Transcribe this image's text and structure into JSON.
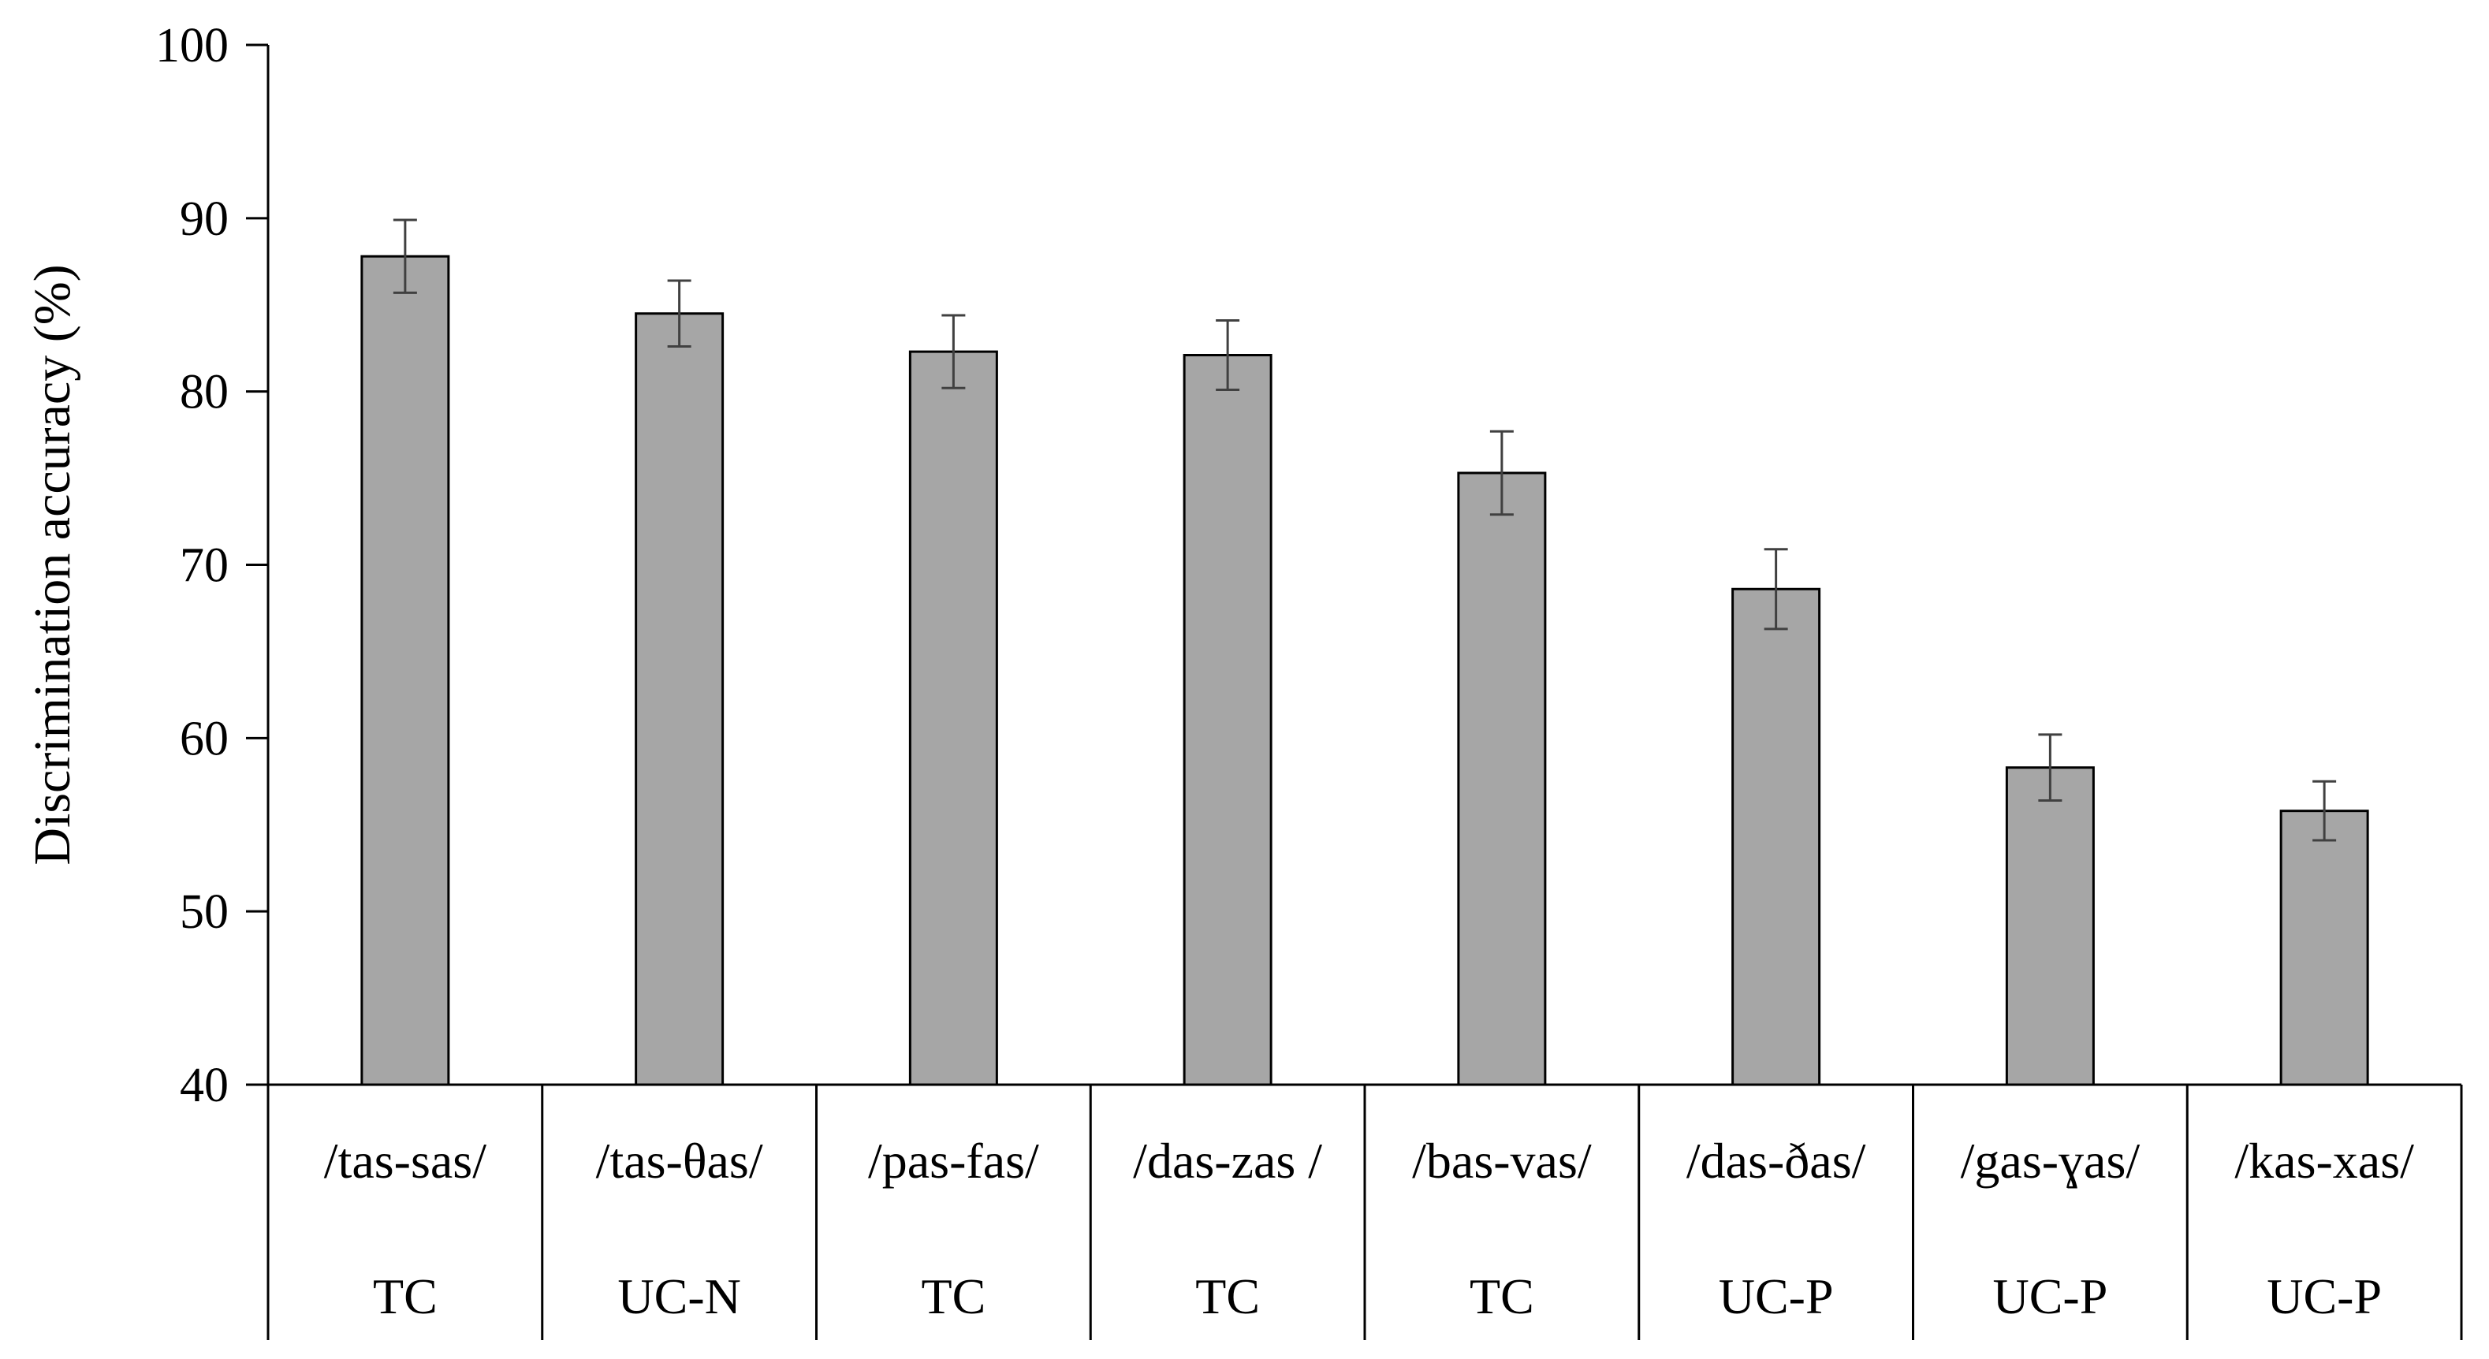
{
  "chart_data": {
    "type": "bar",
    "ylabel": "Discrimination accuracy (%)",
    "xlabel": "",
    "ylim": [
      40,
      100
    ],
    "yticks": [
      40,
      50,
      60,
      70,
      80,
      90,
      100
    ],
    "grid": false,
    "legend": "none",
    "categories": [
      {
        "pair": "/tas-sas/",
        "group": "TC"
      },
      {
        "pair": "/tas-θas/",
        "group": "UC-N"
      },
      {
        "pair": "/pas-fas/",
        "group": "TC"
      },
      {
        "pair": "/das-zas /",
        "group": "TC"
      },
      {
        "pair": "/bas-vas/",
        "group": "TC"
      },
      {
        "pair": "/das-ðas/",
        "group": "UC-P"
      },
      {
        "pair": "/gas-ɣas/",
        "group": "UC-P"
      },
      {
        "pair": "/kas-xas/",
        "group": "UC-P"
      }
    ],
    "series": [
      {
        "values": [
          87.8,
          84.5,
          82.3,
          82.1,
          75.3,
          68.6,
          58.3,
          55.8
        ],
        "error": [
          2.1,
          1.9,
          2.1,
          2.0,
          2.4,
          2.3,
          1.9,
          1.7
        ]
      }
    ],
    "colors": {
      "bar_fill": "#a6a6a6",
      "bar_stroke": "#000000",
      "error_bar": "#404040",
      "axis": "#000000"
    }
  }
}
